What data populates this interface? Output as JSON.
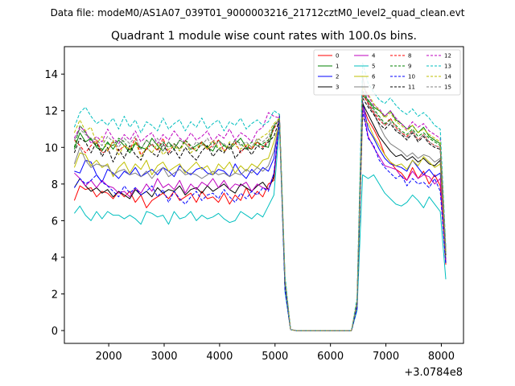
{
  "chart_data": {
    "type": "line",
    "suptitle": "Data file: modeM0/AS1A07_039T01_9000003216_21712cztM0_level2_quad_clean.evt",
    "title": "Quadrant 1 module wise count rates with 100.0s bins.",
    "xlabel": "",
    "ylabel": "",
    "x_offset_label": "+3.0784e8",
    "xlim": [
      1200,
      8400
    ],
    "ylim": [
      -0.7,
      15.5
    ],
    "xticks": [
      2000,
      3000,
      4000,
      5000,
      6000,
      7000,
      8000
    ],
    "yticks": [
      0,
      2,
      4,
      6,
      8,
      10,
      12,
      14
    ],
    "grid": false,
    "legend_position": "top-right",
    "x": [
      1380,
      1480,
      1580,
      1680,
      1780,
      1880,
      1980,
      2080,
      2180,
      2280,
      2380,
      2480,
      2580,
      2680,
      2780,
      2880,
      2980,
      3080,
      3180,
      3280,
      3380,
      3480,
      3580,
      3680,
      3780,
      3880,
      3980,
      4080,
      4180,
      4280,
      4380,
      4480,
      4580,
      4680,
      4780,
      4880,
      4980,
      5080,
      5180,
      5280,
      5380,
      5480,
      5580,
      5680,
      5780,
      5880,
      5980,
      6080,
      6180,
      6280,
      6380,
      6480,
      6580,
      6680,
      6780,
      6880,
      6980,
      7080,
      7180,
      7280,
      7380,
      7480,
      7580,
      7680,
      7780,
      7880,
      7980,
      8080
    ],
    "series": [
      {
        "name": "0",
        "color": "#ff0000",
        "dash": "solid",
        "values": [
          7.1,
          7.9,
          7.7,
          7.8,
          7.3,
          7.6,
          7.5,
          7.2,
          7.6,
          7.3,
          7.6,
          7.0,
          7.4,
          6.7,
          7.1,
          7.3,
          7.5,
          7.2,
          7.6,
          7.1,
          7.3,
          7.5,
          7.0,
          7.6,
          7.2,
          7.3,
          7.0,
          7.5,
          6.9,
          7.4,
          7.1,
          7.8,
          7.2,
          7.6,
          7.3,
          8.0,
          8.2,
          11.8,
          2.2,
          0.05,
          0,
          0,
          0,
          0,
          0,
          0,
          0,
          0,
          0,
          0,
          0,
          1.2,
          12.3,
          11.5,
          11.0,
          10.4,
          9.6,
          9.2,
          8.8,
          8.6,
          8.2,
          8.9,
          8.3,
          8.7,
          8.0,
          8.5,
          7.9,
          3.6
        ]
      },
      {
        "name": "1",
        "color": "#008000",
        "dash": "solid",
        "values": [
          9.9,
          10.8,
          10.3,
          10.5,
          10.0,
          9.8,
          10.3,
          9.9,
          10.4,
          10.1,
          9.7,
          10.2,
          10.0,
          9.9,
          10.5,
          10.1,
          9.8,
          10.3,
          9.9,
          10.4,
          10.2,
          9.9,
          10.1,
          10.3,
          10.0,
          9.8,
          10.4,
          10.1,
          9.9,
          10.2,
          10.5,
          10.0,
          9.9,
          10.3,
          10.1,
          10.0,
          11.2,
          11.5,
          2.8,
          0.05,
          0,
          0,
          0,
          0,
          0,
          0,
          0,
          0,
          0,
          0,
          0,
          1.4,
          12.8,
          12.6,
          12.2,
          12.0,
          11.7,
          12.0,
          11.5,
          11.3,
          11.0,
          11.2,
          10.8,
          11.1,
          10.6,
          10.4,
          10.2,
          4.2
        ]
      },
      {
        "name": "2",
        "color": "#0000ff",
        "dash": "solid",
        "values": [
          8.7,
          8.6,
          9.3,
          9.2,
          8.5,
          8.1,
          8.8,
          8.6,
          8.3,
          8.7,
          8.5,
          8.9,
          8.4,
          8.6,
          8.8,
          8.5,
          8.9,
          8.7,
          8.4,
          9.0,
          8.7,
          8.5,
          8.8,
          8.9,
          8.6,
          8.5,
          8.8,
          8.7,
          8.4,
          9.1,
          8.6,
          8.3,
          8.8,
          8.5,
          8.9,
          8.7,
          9.4,
          11.7,
          2.3,
          0.05,
          0,
          0,
          0,
          0,
          0,
          0,
          0,
          0,
          0,
          0,
          0,
          1.3,
          12.5,
          11.0,
          10.5,
          9.9,
          9.4,
          9.1,
          9.0,
          8.9,
          8.7,
          9.3,
          8.9,
          8.5,
          8.8,
          8.4,
          8.6,
          3.9
        ]
      },
      {
        "name": "3",
        "color": "#000000",
        "dash": "solid",
        "values": [
          7.8,
          8.3,
          7.9,
          7.6,
          7.8,
          7.5,
          7.7,
          7.3,
          7.6,
          7.4,
          7.2,
          7.7,
          7.4,
          7.6,
          7.3,
          7.8,
          7.5,
          7.7,
          7.6,
          7.9,
          7.4,
          7.7,
          7.8,
          7.5,
          7.9,
          7.6,
          7.8,
          8.0,
          7.7,
          7.5,
          8.0,
          7.8,
          7.6,
          7.9,
          8.1,
          7.7,
          8.4,
          11.6,
          2.3,
          0.05,
          0,
          0,
          0,
          0,
          0,
          0,
          0,
          0,
          0,
          0,
          0,
          1.3,
          12.4,
          11.8,
          11.2,
          10.6,
          10.2,
          9.8,
          9.5,
          9.6,
          9.3,
          9.5,
          9.2,
          9.4,
          9.1,
          9.0,
          9.3,
          3.7
        ]
      },
      {
        "name": "4",
        "color": "#bf00bf",
        "dash": "solid",
        "values": [
          8.6,
          8.3,
          7.9,
          8.2,
          7.8,
          8.2,
          7.9,
          7.8,
          7.5,
          7.6,
          7.3,
          7.8,
          7.5,
          8.0,
          7.6,
          8.3,
          7.8,
          8.0,
          7.7,
          8.2,
          7.5,
          8.0,
          7.7,
          8.1,
          7.9,
          8.3,
          7.8,
          8.2,
          7.7,
          8.0,
          7.9,
          8.1,
          7.6,
          8.0,
          7.8,
          7.7,
          8.6,
          11.5,
          2.3,
          0.05,
          0,
          0,
          0,
          0,
          0,
          0,
          0,
          0,
          0,
          0,
          0,
          1.3,
          12.2,
          10.6,
          10.0,
          9.5,
          9.0,
          8.9,
          8.8,
          8.4,
          8.2,
          8.7,
          8.3,
          8.5,
          8.4,
          8.0,
          8.3,
          3.8
        ]
      },
      {
        "name": "5",
        "color": "#00bfbf",
        "dash": "solid",
        "values": [
          6.4,
          6.8,
          6.3,
          6.0,
          6.5,
          6.1,
          6.5,
          6.3,
          6.3,
          6.1,
          6.3,
          6.1,
          5.8,
          6.5,
          6.4,
          6.2,
          6.3,
          5.8,
          6.5,
          6.1,
          6.2,
          6.5,
          6.0,
          6.3,
          6.1,
          6.2,
          6.4,
          6.1,
          5.9,
          6.0,
          6.5,
          6.3,
          6.1,
          6.4,
          6.2,
          6.8,
          7.4,
          11.2,
          2.1,
          0.05,
          0,
          0,
          0,
          0,
          0,
          0,
          0,
          0,
          0,
          0,
          0,
          1.1,
          8.5,
          8.3,
          8.5,
          8.0,
          7.5,
          7.2,
          6.9,
          6.8,
          7.0,
          7.4,
          7.1,
          6.7,
          7.3,
          6.9,
          6.5,
          2.8
        ]
      },
      {
        "name": "6",
        "color": "#bfbf00",
        "dash": "solid",
        "values": [
          8.9,
          9.7,
          9.6,
          9.0,
          9.3,
          8.9,
          9.1,
          8.4,
          8.9,
          9.2,
          8.6,
          9.1,
          8.8,
          9.3,
          8.5,
          9.0,
          9.2,
          8.7,
          8.9,
          9.1,
          8.6,
          8.9,
          9.2,
          8.8,
          9.0,
          8.5,
          9.1,
          8.8,
          9.2,
          8.6,
          9.0,
          8.7,
          9.1,
          8.9,
          9.3,
          9.4,
          10.3,
          11.3,
          2.6,
          0.05,
          0,
          0,
          0,
          0,
          0,
          0,
          0,
          0,
          0,
          0,
          0,
          1.4,
          11.6,
          11.3,
          10.6,
          10.1,
          9.6,
          9.2,
          9.0,
          9.1,
          8.8,
          9.3,
          9.0,
          9.5,
          9.2,
          8.9,
          9.1,
          4.0
        ]
      },
      {
        "name": "7",
        "color": "#808080",
        "dash": "solid",
        "values": [
          9.1,
          10.0,
          9.3,
          8.9,
          9.1,
          9.0,
          9.0,
          8.5,
          8.7,
          8.8,
          8.5,
          8.6,
          8.4,
          8.7,
          8.3,
          8.7,
          8.9,
          8.4,
          8.6,
          8.8,
          8.5,
          8.6,
          8.5,
          8.3,
          8.5,
          8.7,
          8.5,
          8.6,
          8.4,
          8.6,
          8.5,
          8.8,
          8.6,
          8.9,
          8.7,
          9.0,
          9.8,
          11.4,
          2.5,
          0.05,
          0,
          0,
          0,
          0,
          0,
          0,
          0,
          0,
          0,
          0,
          0,
          1.4,
          13.9,
          12.3,
          11.9,
          11.2,
          10.6,
          10.2,
          10.0,
          9.8,
          9.5,
          9.7,
          9.4,
          9.6,
          9.5,
          9.2,
          9.4,
          4.1
        ]
      },
      {
        "name": "8",
        "color": "#ff0000",
        "dash": "dashed",
        "values": [
          10.4,
          10.1,
          9.7,
          10.1,
          10.4,
          9.7,
          9.8,
          10.3,
          9.8,
          10.1,
          9.9,
          10.5,
          9.6,
          9.9,
          10.2,
          9.8,
          10.5,
          9.7,
          10.2,
          9.9,
          10.4,
          10.0,
          9.8,
          10.3,
          9.9,
          10.1,
          10.4,
          9.8,
          10.0,
          10.3,
          9.7,
          10.1,
          9.9,
          10.3,
          10.0,
          10.4,
          11.0,
          11.6,
          2.7,
          0.05,
          0,
          0,
          0,
          0,
          0,
          0,
          0,
          0,
          0,
          0,
          0,
          1.5,
          12.9,
          12.4,
          11.9,
          11.5,
          11.2,
          11.6,
          11.1,
          10.8,
          10.6,
          10.9,
          10.4,
          10.7,
          10.3,
          10.1,
          10.0,
          4.2
        ]
      },
      {
        "name": "9",
        "color": "#008000",
        "dash": "dashed",
        "values": [
          10.0,
          11.2,
          10.8,
          10.4,
          10.1,
          9.9,
          10.2,
          10.1,
          10.5,
          10.3,
          9.8,
          10.3,
          9.9,
          10.4,
          10.1,
          9.9,
          10.3,
          10.0,
          10.2,
          9.9,
          10.4,
          10.1,
          9.8,
          10.2,
          10.0,
          10.3,
          9.9,
          10.1,
          10.0,
          10.4,
          10.2,
          9.9,
          10.3,
          10.1,
          10.2,
          10.4,
          11.1,
          11.6,
          2.7,
          0.05,
          0,
          0,
          0,
          0,
          0,
          0,
          0,
          0,
          0,
          0,
          0,
          1.5,
          13.1,
          12.5,
          12.1,
          11.7,
          11.3,
          11.5,
          11.2,
          10.9,
          10.7,
          11.0,
          10.6,
          10.8,
          10.5,
          10.3,
          10.1,
          4.3
        ]
      },
      {
        "name": "10",
        "color": "#0000ff",
        "dash": "dashed",
        "values": [
          7.8,
          8.3,
          8.0,
          8.2,
          8.5,
          8.1,
          7.9,
          7.6,
          7.3,
          7.9,
          7.5,
          7.8,
          7.4,
          7.6,
          7.9,
          7.3,
          7.7,
          7.0,
          7.6,
          7.2,
          6.9,
          7.3,
          7.6,
          7.1,
          7.4,
          7.5,
          7.2,
          7.7,
          7.3,
          7.0,
          7.5,
          7.2,
          7.6,
          7.4,
          7.8,
          7.6,
          8.6,
          11.4,
          2.2,
          0.05,
          0,
          0,
          0,
          0,
          0,
          0,
          0,
          0,
          0,
          0,
          0,
          1.2,
          12.0,
          10.5,
          10.1,
          9.3,
          8.9,
          8.6,
          8.3,
          8.5,
          7.9,
          8.3,
          8.0,
          8.1,
          7.8,
          8.3,
          7.6,
          3.6
        ]
      },
      {
        "name": "11",
        "color": "#000000",
        "dash": "dashed",
        "values": [
          9.7,
          10.5,
          10.3,
          9.7,
          10.3,
          9.5,
          10.0,
          9.2,
          9.9,
          9.4,
          10.1,
          9.6,
          9.3,
          10.0,
          9.7,
          9.5,
          10.2,
          9.6,
          9.9,
          9.4,
          10.0,
          9.6,
          9.3,
          9.8,
          10.1,
          9.5,
          9.9,
          9.7,
          10.2,
          9.4,
          9.8,
          10.0,
          9.6,
          10.1,
          9.9,
          10.3,
          10.6,
          11.5,
          2.6,
          0.05,
          0,
          0,
          0,
          0,
          0,
          0,
          0,
          0,
          0,
          0,
          0,
          1.5,
          12.7,
          12.2,
          11.8,
          11.3,
          11.0,
          11.3,
          10.9,
          10.7,
          10.4,
          10.8,
          10.3,
          10.6,
          10.2,
          10.0,
          9.9,
          4.1
        ]
      },
      {
        "name": "12",
        "color": "#bf00bf",
        "dash": "dashed",
        "values": [
          10.5,
          11.1,
          10.9,
          10.2,
          10.6,
          10.3,
          11.0,
          10.5,
          10.2,
          10.7,
          10.4,
          10.9,
          10.3,
          10.6,
          10.8,
          10.2,
          10.7,
          10.4,
          10.9,
          10.5,
          10.3,
          10.8,
          10.4,
          10.6,
          10.9,
          10.3,
          10.7,
          10.5,
          11.0,
          10.4,
          10.8,
          10.6,
          10.3,
          10.9,
          11.1,
          11.9,
          11.7,
          11.6,
          2.8,
          0.05,
          0,
          0,
          0,
          0,
          0,
          0,
          0,
          0,
          0,
          0,
          0,
          1.6,
          13.3,
          12.8,
          12.3,
          12.1,
          11.7,
          12.0,
          11.6,
          11.3,
          11.0,
          11.4,
          11.1,
          11.3,
          10.9,
          10.7,
          10.5,
          4.4
        ]
      },
      {
        "name": "13",
        "color": "#00bfbf",
        "dash": "dashed",
        "values": [
          11.1,
          11.9,
          12.2,
          11.7,
          11.3,
          11.5,
          11.2,
          11.6,
          11.0,
          11.7,
          11.1,
          11.5,
          10.8,
          11.4,
          11.2,
          10.9,
          11.6,
          11.0,
          11.3,
          11.5,
          10.9,
          11.4,
          11.1,
          11.6,
          11.0,
          11.3,
          11.5,
          10.9,
          11.4,
          11.2,
          11.6,
          11.0,
          11.3,
          11.5,
          11.2,
          11.4,
          12.0,
          11.8,
          3.0,
          0.05,
          0,
          0,
          0,
          0,
          0,
          0,
          0,
          0,
          0,
          0,
          0,
          1.8,
          14.6,
          13.5,
          13.0,
          12.6,
          12.4,
          12.7,
          12.3,
          12.0,
          11.8,
          12.1,
          11.7,
          11.9,
          11.6,
          11.2,
          11.0,
          4.6
        ]
      },
      {
        "name": "14",
        "color": "#bfbf00",
        "dash": "dashed",
        "values": [
          10.8,
          11.5,
          10.9,
          11.1,
          10.2,
          10.6,
          9.8,
          10.4,
          9.6,
          10.1,
          9.9,
          10.3,
          9.5,
          10.0,
          9.7,
          10.2,
          9.6,
          9.9,
          10.1,
          9.8,
          10.3,
          9.7,
          10.0,
          10.2,
          9.9,
          10.4,
          10.0,
          9.8,
          10.3,
          10.1,
          9.9,
          10.2,
          10.0,
          10.4,
          10.6,
          10.8,
          11.3,
          11.6,
          2.8,
          0.05,
          0,
          0,
          0,
          0,
          0,
          0,
          0,
          0,
          0,
          0,
          0,
          1.6,
          13.3,
          12.9,
          12.4,
          12.0,
          11.6,
          11.9,
          11.4,
          11.2,
          10.9,
          11.2,
          10.8,
          11.0,
          10.7,
          10.5,
          10.3,
          4.3
        ]
      },
      {
        "name": "15",
        "color": "#808080",
        "dash": "dashed",
        "values": [
          10.4,
          11.0,
          10.7,
          10.5,
          10.4,
          10.1,
          10.6,
          10.3,
          10.0,
          10.5,
          10.2,
          10.6,
          9.9,
          10.4,
          10.1,
          10.5,
          9.8,
          10.3,
          10.0,
          10.4,
          10.2,
          9.9,
          10.3,
          10.1,
          10.5,
          10.0,
          10.3,
          10.2,
          9.9,
          10.4,
          10.1,
          10.3,
          10.0,
          10.5,
          10.3,
          10.6,
          11.2,
          11.5,
          2.7,
          0.05,
          0,
          0,
          0,
          0,
          0,
          0,
          0,
          0,
          0,
          0,
          0,
          1.5,
          13.0,
          12.5,
          12.0,
          11.6,
          11.2,
          11.4,
          11.0,
          10.8,
          10.5,
          10.9,
          10.4,
          10.7,
          10.3,
          10.1,
          10.0,
          4.2
        ]
      }
    ]
  }
}
